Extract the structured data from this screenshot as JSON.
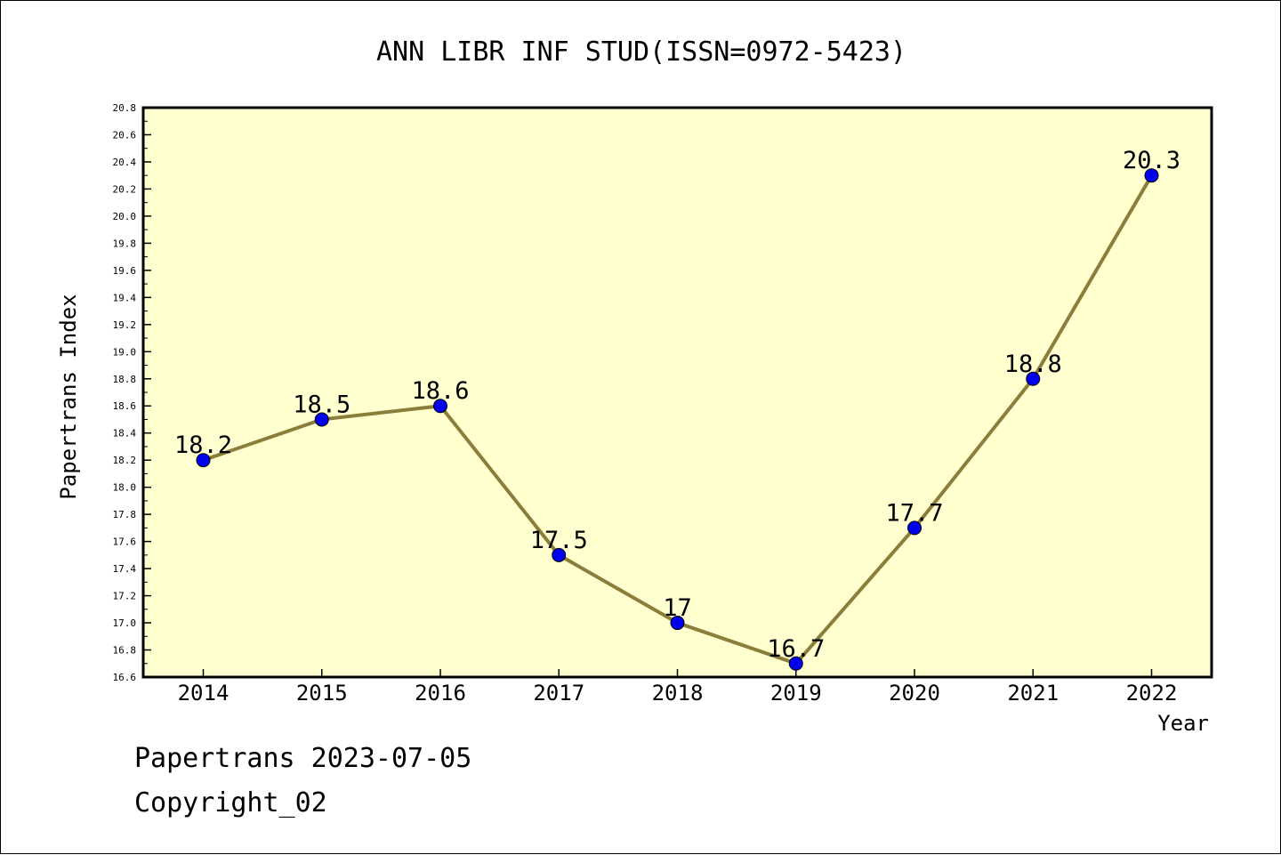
{
  "chart_data": {
    "type": "line",
    "title": "ANN LIBR INF STUD(ISSN=0972-5423)",
    "xlabel": "Year",
    "ylabel": "Papertrans Index",
    "x": [
      "2014",
      "2015",
      "2016",
      "2017",
      "2018",
      "2019",
      "2020",
      "2021",
      "2022"
    ],
    "values": [
      18.2,
      18.5,
      18.6,
      17.5,
      17.0,
      16.7,
      17.7,
      18.8,
      20.3
    ],
    "data_labels": [
      "18.2",
      "18.5",
      "18.6",
      "17.5",
      "17",
      "16.7",
      "17.7",
      "18.8",
      "20.3"
    ],
    "ylim": [
      16.6,
      20.8
    ],
    "yticks": [
      "16.6",
      "16.8",
      "17.0",
      "17.2",
      "17.4",
      "17.6",
      "17.8",
      "18.0",
      "18.2",
      "18.4",
      "18.6",
      "18.8",
      "19.0",
      "19.2",
      "19.4",
      "19.6",
      "19.8",
      "20.0",
      "20.2",
      "20.4",
      "20.6",
      "20.8"
    ],
    "grid": false,
    "colors": {
      "plot_background": "#ffffd0",
      "line": "#8b7d3a",
      "marker": "#0000ee"
    }
  },
  "footer": {
    "line1": "Papertrans 2023-07-05",
    "line2": "Copyright_02"
  }
}
